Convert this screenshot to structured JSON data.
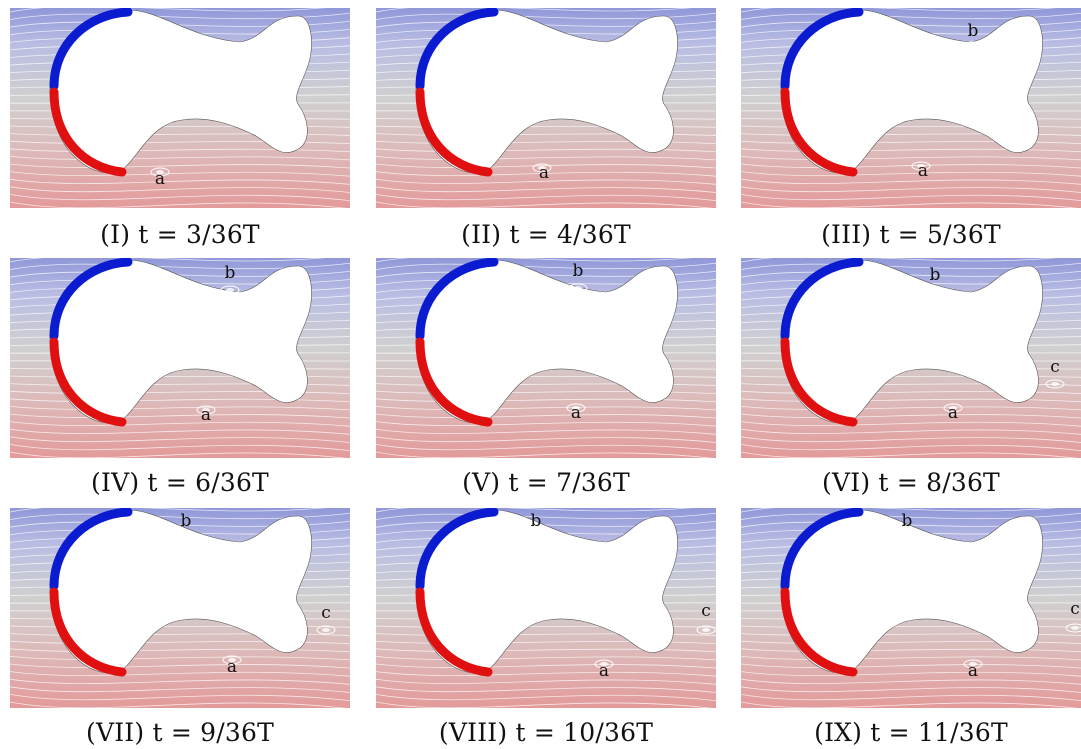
{
  "figure": {
    "panels": [
      {
        "caption": "(I)  t = 3/36T",
        "labels": [
          "a"
        ]
      },
      {
        "caption": "(II)  t = 4/36T",
        "labels": [
          "a"
        ]
      },
      {
        "caption": "(III)  t = 5/36T",
        "labels": [
          "a",
          "b"
        ]
      },
      {
        "caption": "(IV)  t = 6/36T",
        "labels": [
          "a",
          "b"
        ]
      },
      {
        "caption": "(V)  t = 7/36T",
        "labels": [
          "a",
          "b"
        ]
      },
      {
        "caption": "(VI)  t = 8/36T",
        "labels": [
          "a",
          "b",
          "c"
        ]
      },
      {
        "caption": "(VII)  t = 9/36T",
        "labels": [
          "a",
          "b",
          "c"
        ]
      },
      {
        "caption": "(VIII)  t = 10/36T",
        "labels": [
          "a",
          "b",
          "c"
        ]
      },
      {
        "caption": "(IX)  t = 11/36T",
        "labels": [
          "a",
          "b",
          "c"
        ]
      }
    ],
    "colors": {
      "top_flow": "#8f97d8",
      "bottom_flow": "#e39a9a",
      "neutral": "#d0d0d0",
      "edge_blue": "#0a1bd0",
      "edge_red": "#e01010",
      "streamline": "#ffffff"
    }
  }
}
